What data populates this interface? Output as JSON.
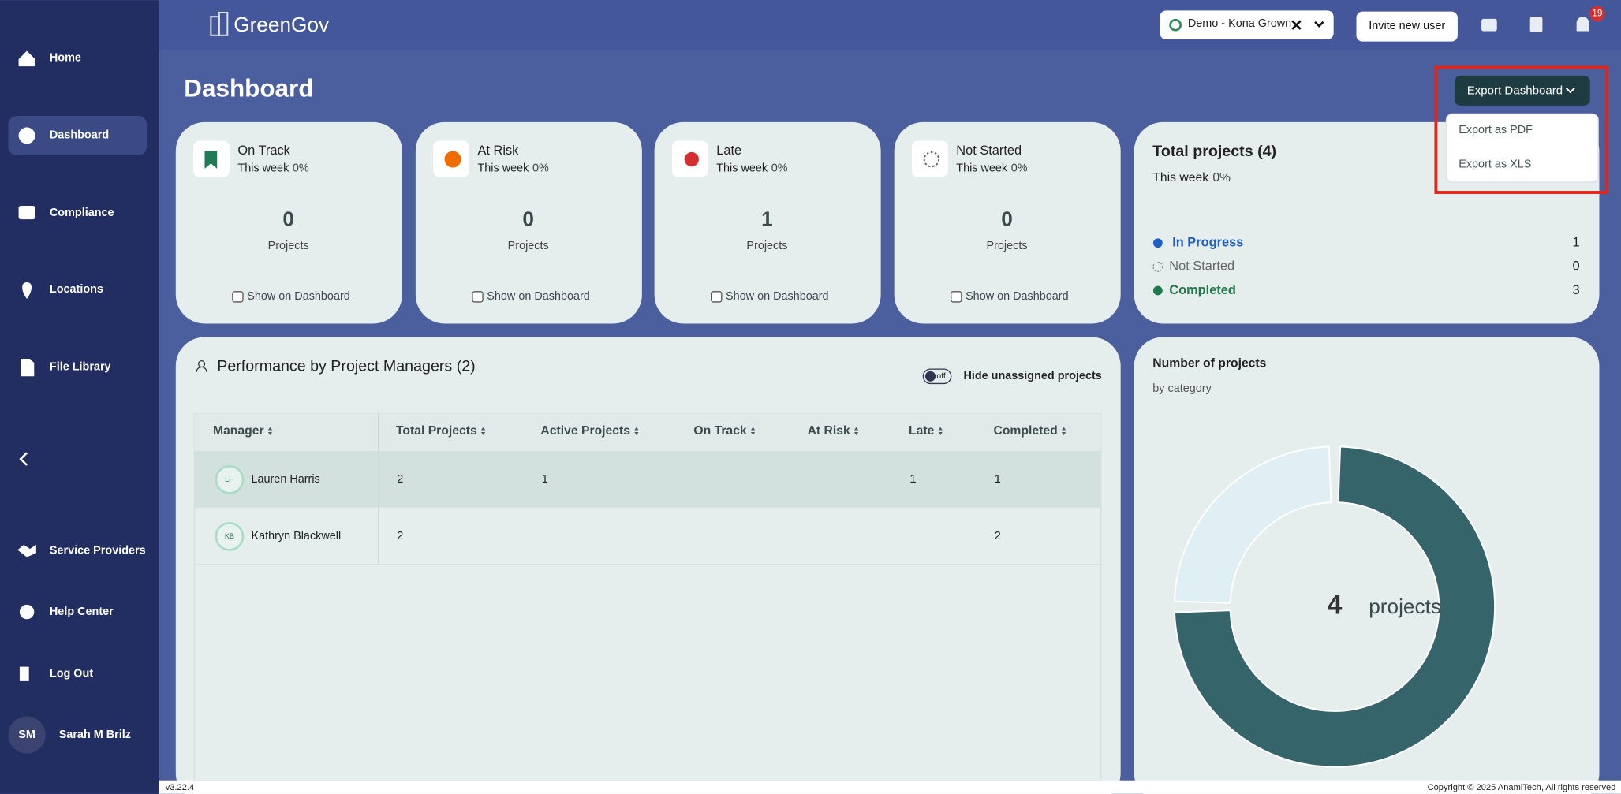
{
  "sidebar": {
    "items": [
      "Home",
      "Dashboard",
      "Compliance",
      "Locations",
      "File Library",
      "Service Providers",
      "Help Center",
      "Log Out"
    ],
    "user": {
      "initials": "SM",
      "name": "Sarah M Brilz"
    }
  },
  "header": {
    "brand": "GreenGov",
    "org": "Demo - Kona Grown",
    "invite": "Invite new user",
    "notifications": 19
  },
  "page": {
    "title": "Dashboard",
    "export": {
      "button": "Export Dashboard",
      "options": [
        "Export as PDF",
        "Export as XLS"
      ]
    }
  },
  "cards": [
    {
      "title": "On Track",
      "period": "This week",
      "change": "0%",
      "count": 0,
      "unit": "Projects",
      "checkbox": "Show on Dashboard"
    },
    {
      "title": "At Risk",
      "period": "This week",
      "change": "0%",
      "count": 0,
      "unit": "Projects",
      "checkbox": "Show on Dashboard"
    },
    {
      "title": "Late",
      "period": "This week",
      "change": "0%",
      "count": 1,
      "unit": "Projects",
      "checkbox": "Show on Dashboard"
    },
    {
      "title": "Not Started",
      "period": "This week",
      "change": "0%",
      "count": 0,
      "unit": "Projects",
      "checkbox": "Show on Dashboard"
    }
  ],
  "total": {
    "title": "Total projects (4)",
    "period": "This week",
    "change": "0%",
    "statuses": [
      {
        "label": "In Progress",
        "count": 1
      },
      {
        "label": "Not Started",
        "count": 0
      },
      {
        "label": "Completed",
        "count": 3
      }
    ]
  },
  "performance": {
    "title": "Performance by Project Managers (2)",
    "toggle": "off",
    "toggle_label": "Hide unassigned projects",
    "columns": [
      "Manager",
      "Total Projects",
      "Active Projects",
      "On Track",
      "At Risk",
      "Late",
      "Completed"
    ],
    "rows": [
      {
        "initials": "LH",
        "manager": "Lauren Harris",
        "total": 2,
        "active": 1,
        "late": 1,
        "completed": 1
      },
      {
        "initials": "KB",
        "manager": "Kathryn Blackwell",
        "total": 2,
        "completed": 2
      }
    ]
  },
  "chart": {
    "title": "Number of projects",
    "subtitle": "by category",
    "center_value": 4,
    "center_label": "projects"
  },
  "footer": {
    "version": "v3.22.4",
    "copyright": "Copyright © 2025 AnamiTech, All rights reserved"
  }
}
